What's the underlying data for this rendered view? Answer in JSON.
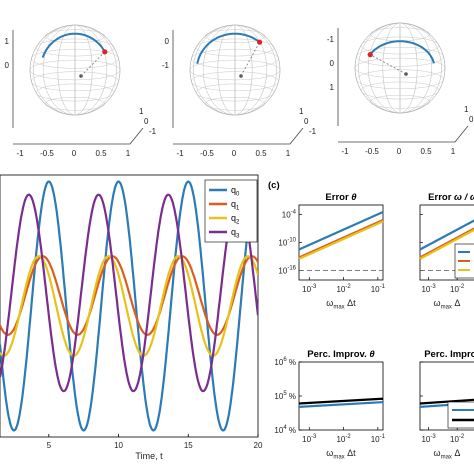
{
  "spheres": [
    {
      "x_ticks": [
        "-1",
        "-0.5",
        "0",
        "0.5",
        "1"
      ],
      "y_ticks": [
        "-1",
        "0",
        "1"
      ],
      "z_ticks": [
        "1",
        "0"
      ],
      "arc_from_angle": -70,
      "arc_to_angle": 60,
      "marker": "red-dot-bottom"
    },
    {
      "x_ticks": [
        "-1",
        "-0.5",
        "0",
        "0.5",
        "1"
      ],
      "y_ticks": [
        "-1",
        "0",
        "1"
      ],
      "z_ticks": [
        "0",
        "-1"
      ],
      "arc_from_angle": -80,
      "arc_to_angle": 40,
      "marker": "red-dot-right"
    },
    {
      "x_ticks": [
        "-1",
        "-0.5",
        "0",
        "0.5",
        "1"
      ],
      "y_ticks": [
        "-1",
        "0",
        "1"
      ],
      "z_ticks": [
        "-1",
        "0",
        "1"
      ],
      "arc_from_angle": -60,
      "arc_to_angle": 80,
      "marker": "red-dot-top"
    }
  ],
  "panel_c_label": "(c)",
  "chart_data": [
    {
      "type": "line",
      "xlabel": "Time, t",
      "xlim": [
        1.5,
        20
      ],
      "ylim": [
        -1,
        1
      ],
      "x_ticks": [
        "5",
        "10",
        "15",
        "20"
      ],
      "series": [
        {
          "name": "q0",
          "amp": 0.95,
          "period": 5.0,
          "phase": 0.0,
          "offset": 0.0
        },
        {
          "name": "q1",
          "amp": 0.3,
          "period": 5.0,
          "phase": 0.55,
          "offset": 0.08
        },
        {
          "name": "q2",
          "amp": 0.38,
          "period": 5.0,
          "phase": 0.9,
          "offset": 0.0
        },
        {
          "name": "q3",
          "amp": 0.75,
          "period": 5.0,
          "phase": 1.8,
          "offset": 0.1
        }
      ],
      "legend": {
        "entries": [
          "q",
          "q",
          "q",
          "q"
        ],
        "subs": [
          "0",
          "1",
          "2",
          "3"
        ],
        "position": "top-right"
      }
    },
    {
      "type": "line",
      "title_parts": [
        "Error ",
        "θ"
      ],
      "xlabel_parts": [
        "ω",
        "max",
        " Δt"
      ],
      "x_scale": "log",
      "y_scale": "log",
      "x_ticks": [
        {
          "base": "10",
          "exp": "-3"
        },
        {
          "base": "10",
          "exp": "-2"
        },
        {
          "base": "10",
          "exp": "-1"
        }
      ],
      "y_ticks": [
        {
          "base": "10",
          "exp": "-4"
        },
        {
          "base": "10",
          "exp": "-10"
        },
        {
          "base": "10",
          "exp": "-16"
        }
      ],
      "series": [
        {
          "color": "blue",
          "y_start": -11.5,
          "y_end": -3.5
        },
        {
          "color": "orange",
          "y_start": -13.2,
          "y_end": -5.2
        },
        {
          "color": "yellow",
          "y_start": -13.5,
          "y_end": -5.5
        }
      ],
      "reference_line": -16
    },
    {
      "type": "line",
      "title_parts": [
        "Error ",
        "ω / ω"
      ],
      "xlabel_parts": [
        "ω",
        "max",
        " Δ"
      ],
      "x_scale": "log",
      "y_scale": "log",
      "x_ticks": [
        {
          "base": "10",
          "exp": "-3"
        },
        {
          "base": "10",
          "exp": "-2"
        }
      ],
      "y_ticks": [
        {
          "base": "10",
          "exp": "-4"
        },
        {
          "base": "10",
          "exp": "-10"
        },
        {
          "base": "10",
          "exp": "-16"
        }
      ],
      "series": [
        {
          "color": "blue",
          "y_start": -11.5,
          "y_end": -3.5
        },
        {
          "color": "orange",
          "y_start": -13.2,
          "y_end": -5.2
        },
        {
          "color": "yellow",
          "y_start": -13.5,
          "y_end": -5.5
        }
      ],
      "reference_line": -16
    },
    {
      "type": "line",
      "title_parts": [
        "Perc. Improv. ",
        "θ"
      ],
      "xlabel_parts": [
        "ω",
        "max",
        " Δt"
      ],
      "x_scale": "log",
      "y_scale": "log",
      "x_ticks": [
        {
          "base": "10",
          "exp": "-3"
        },
        {
          "base": "10",
          "exp": "-2"
        },
        {
          "base": "10",
          "exp": "-1"
        }
      ],
      "y_ticks": [
        {
          "base": "10",
          "exp": "6",
          "unit": " %"
        },
        {
          "base": "10",
          "exp": "5",
          "unit": " %"
        },
        {
          "base": "10",
          "exp": "4",
          "unit": " %"
        }
      ],
      "series": [
        {
          "color": "black",
          "y_start": 4.78,
          "y_end": 4.92
        },
        {
          "color": "blue",
          "y_start": 4.68,
          "y_end": 4.82
        }
      ]
    },
    {
      "type": "line",
      "title_parts": [
        "Perc. Improv"
      ],
      "xlabel_parts": [
        "ω",
        "max",
        " Δ"
      ],
      "x_scale": "log",
      "y_scale": "log",
      "x_ticks": [
        {
          "base": "10",
          "exp": "-3"
        },
        {
          "base": "10",
          "exp": "-2"
        }
      ],
      "y_ticks": [
        {
          "base": "10",
          "exp": "6",
          "unit": " %"
        },
        {
          "base": "10",
          "exp": "5",
          "unit": " %"
        },
        {
          "base": "10",
          "exp": "4",
          "unit": " %"
        }
      ],
      "series": [
        {
          "color": "black",
          "y_start": 4.78,
          "y_end": 4.92
        },
        {
          "color": "blue",
          "y_start": 4.68,
          "y_end": 4.82
        }
      ]
    }
  ],
  "colors": {
    "blue": "#2c7bb6",
    "orange": "#d95f1e",
    "yellow": "#e8c21a",
    "purple": "#7b2d8e",
    "black": "#000000",
    "red": "#e0202a"
  }
}
